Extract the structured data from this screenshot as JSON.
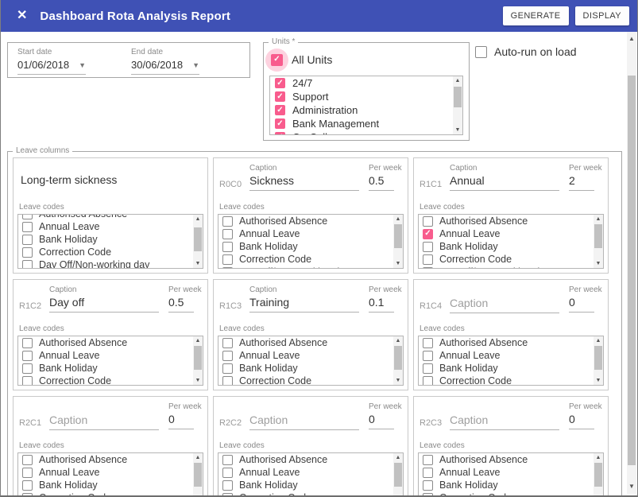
{
  "header": {
    "title": "Dashboard Rota Analysis Report",
    "generate_label": "GENERATE",
    "display_label": "DISPLAY",
    "close_icon": "✕"
  },
  "dates": {
    "start": {
      "label": "Start date",
      "value": "01/06/2018"
    },
    "end": {
      "label": "End date",
      "value": "30/06/2018"
    }
  },
  "units": {
    "legend": "Units *",
    "all_units": {
      "label": "All Units",
      "checked": true
    },
    "items": [
      {
        "label": "24/7",
        "checked": true
      },
      {
        "label": "Support",
        "checked": true
      },
      {
        "label": "Administration",
        "checked": true
      },
      {
        "label": "Bank Management",
        "checked": true
      },
      {
        "label": "On-Call",
        "checked": true
      }
    ]
  },
  "autorun": {
    "label": "Auto-run on load",
    "checked": false
  },
  "leave": {
    "legend": "Leave columns",
    "caption_label": "Caption",
    "per_week_label": "Per week",
    "leave_codes_label": "Leave codes",
    "codes": [
      "Authorised Absence",
      "Annual Leave",
      "Bank Holiday",
      "Correction Code",
      "Day Off/Non-working day"
    ],
    "panels": [
      {
        "type": "plain",
        "caption": "Long-term sickness",
        "scrolled": true,
        "extra_partial_row": true,
        "checked": []
      },
      {
        "id": "R0C0",
        "caption": "Sickness",
        "per_week": "0.5",
        "checked": []
      },
      {
        "id": "R1C1",
        "caption": "Annual",
        "per_week": "2",
        "checked": [
          "Annual Leave"
        ]
      },
      {
        "id": "R1C2",
        "caption": "Day off",
        "per_week": "0.5",
        "checked": [
          "Day Off/Non-working day"
        ]
      },
      {
        "id": "R1C3",
        "caption": "Training",
        "per_week": "0.1",
        "checked": []
      },
      {
        "id": "R1C4",
        "caption": "",
        "per_week": "0",
        "checked": []
      },
      {
        "id": "R2C1",
        "caption": "",
        "per_week": "0",
        "checked": []
      },
      {
        "id": "R2C2",
        "caption": "",
        "per_week": "0",
        "checked": []
      },
      {
        "id": "R2C3",
        "caption": "",
        "per_week": "0",
        "checked": []
      }
    ]
  },
  "colors": {
    "header_bg": "#3f51b5",
    "accent_pink": "#f85c8d"
  }
}
